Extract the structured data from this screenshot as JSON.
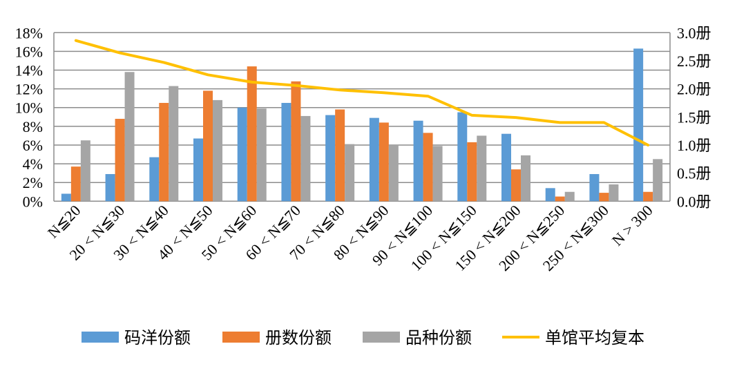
{
  "chart_data": {
    "type": "bar+line",
    "categories": [
      "N≦20",
      "20 < N≦30",
      "30 < N≦40",
      "40 < N≦50",
      "50 < N≦60",
      "60 < N≦70",
      "70 < N≦80",
      "80 < N≦90",
      "90 < N≦100",
      "100 < N≦150",
      "150 < N≦200",
      "200 < N≦250",
      "250 < N≦300",
      "N > 300"
    ],
    "series": [
      {
        "name": "码洋份额",
        "type": "bar",
        "axis": "left",
        "color": "#5B9BD5",
        "values": [
          0.8,
          2.9,
          4.7,
          6.7,
          10.0,
          10.5,
          9.2,
          8.9,
          8.6,
          9.5,
          7.2,
          1.4,
          2.9,
          16.3
        ]
      },
      {
        "name": "册数份额",
        "type": "bar",
        "axis": "left",
        "color": "#ED7D31",
        "values": [
          3.7,
          8.8,
          10.5,
          11.8,
          14.4,
          12.8,
          9.8,
          8.4,
          7.3,
          6.3,
          3.4,
          0.5,
          0.9,
          1.0
        ]
      },
      {
        "name": "品种份额",
        "type": "bar",
        "axis": "left",
        "color": "#A5A5A5",
        "values": [
          6.5,
          13.8,
          12.3,
          10.8,
          9.9,
          9.1,
          6.1,
          6.0,
          5.9,
          7.0,
          4.9,
          1.0,
          1.8,
          4.5
        ]
      },
      {
        "name": "单馆平均复本",
        "type": "line",
        "axis": "right",
        "color": "#FFC000",
        "values": [
          2.86,
          2.64,
          2.47,
          2.25,
          2.12,
          2.06,
          1.98,
          1.93,
          1.87,
          1.53,
          1.49,
          1.4,
          1.4,
          1.0
        ]
      }
    ],
    "left_axis": {
      "ylim": [
        0,
        18
      ],
      "ticks": [
        "0%",
        "2%",
        "4%",
        "6%",
        "8%",
        "10%",
        "12%",
        "14%",
        "16%",
        "18%"
      ]
    },
    "right_axis": {
      "ylim": [
        0,
        3.0
      ],
      "ticks": [
        "0.0册",
        "0.5册",
        "1.0册",
        "1.5册",
        "2.0册",
        "2.5册",
        "3.0册"
      ]
    },
    "grid": true,
    "legend": "bottom"
  }
}
